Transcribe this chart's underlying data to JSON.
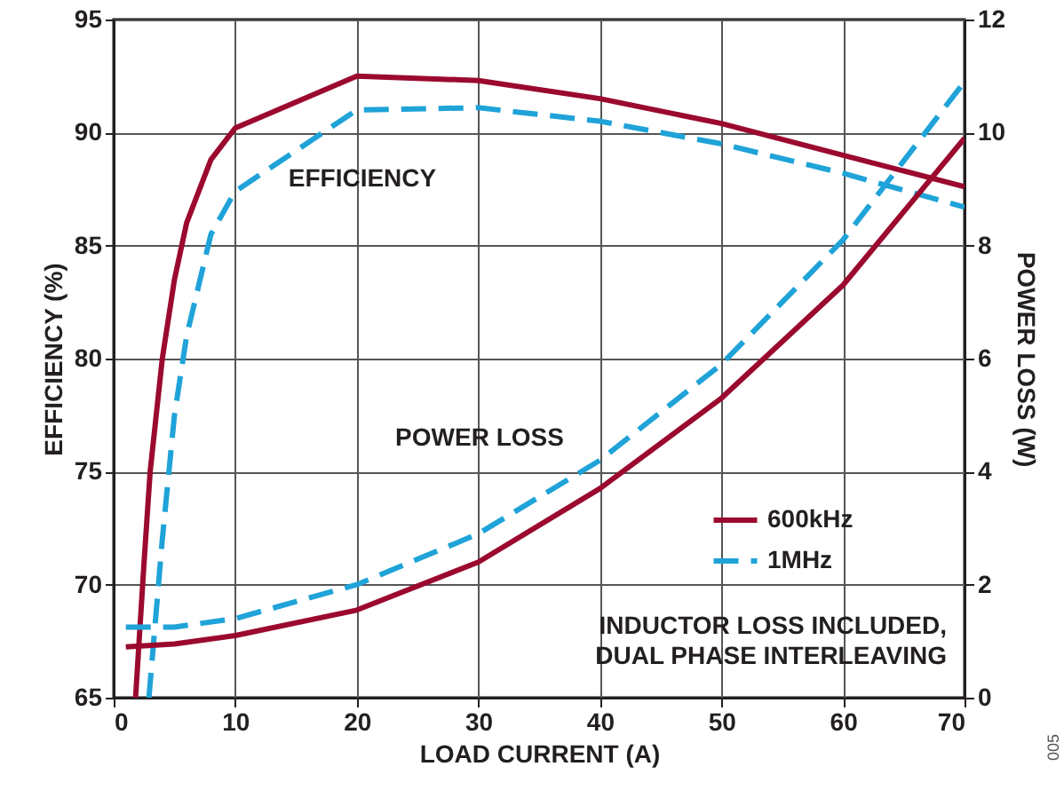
{
  "chart_data": {
    "type": "line",
    "xlabel": "LOAD CURRENT (A)",
    "ylabel": "EFFICIENCY (%)",
    "y2label": "POWER LOSS (W)",
    "xlim": [
      0,
      70
    ],
    "xticks": [
      0,
      10,
      20,
      30,
      40,
      50,
      60,
      70
    ],
    "ylim": [
      65,
      95
    ],
    "yticks": [
      65,
      70,
      75,
      80,
      85,
      90,
      95
    ],
    "y2lim": [
      0,
      12
    ],
    "y2ticks": [
      0,
      2,
      4,
      6,
      8,
      10,
      12
    ],
    "grid": true,
    "legend": "bottom right",
    "series": [
      {
        "name": "600kHz",
        "color": "#9b0a2e",
        "line_style": "solid",
        "x": [
          1.8,
          2.5,
          3,
          4,
          5,
          6,
          8,
          10,
          20,
          30,
          40,
          50,
          60,
          70
        ],
        "values": [
          65,
          71,
          75,
          80,
          83.5,
          86,
          88.8,
          90.2,
          92.5,
          92.3,
          91.5,
          90.4,
          89,
          87.6
        ]
      },
      {
        "name": "1MHz",
        "color": "#1fa3d8",
        "line_style": "dashed",
        "x": [
          2.9,
          4,
          5,
          6,
          8,
          10,
          20,
          30,
          40,
          50,
          60,
          70
        ],
        "values": [
          65,
          72,
          77.5,
          81,
          85.5,
          87.4,
          91,
          91.1,
          90.5,
          89.5,
          88.2,
          86.7
        ]
      },
      {
        "color": "#9b0a2e",
        "line_style": "solid",
        "axis": "y2",
        "x": [
          1,
          5,
          10,
          20,
          30,
          40,
          50,
          60,
          70
        ],
        "values": [
          0.9,
          0.95,
          1.1,
          1.55,
          2.4,
          3.7,
          5.3,
          7.3,
          9.9
        ]
      },
      {
        "color": "#1fa3d8",
        "line_style": "dashed",
        "axis": "y2",
        "x": [
          1,
          5,
          10,
          20,
          30,
          40,
          50,
          60,
          70
        ],
        "values": [
          1.25,
          1.25,
          1.4,
          2,
          2.9,
          4.2,
          5.9,
          8.1,
          10.9
        ]
      }
    ],
    "annotations": [
      "EFFICIENCY",
      "POWER LOSS",
      "INDUCTOR LOSS INCLUDED,\nDUAL PHASE INTERLEAVING",
      "005"
    ]
  }
}
